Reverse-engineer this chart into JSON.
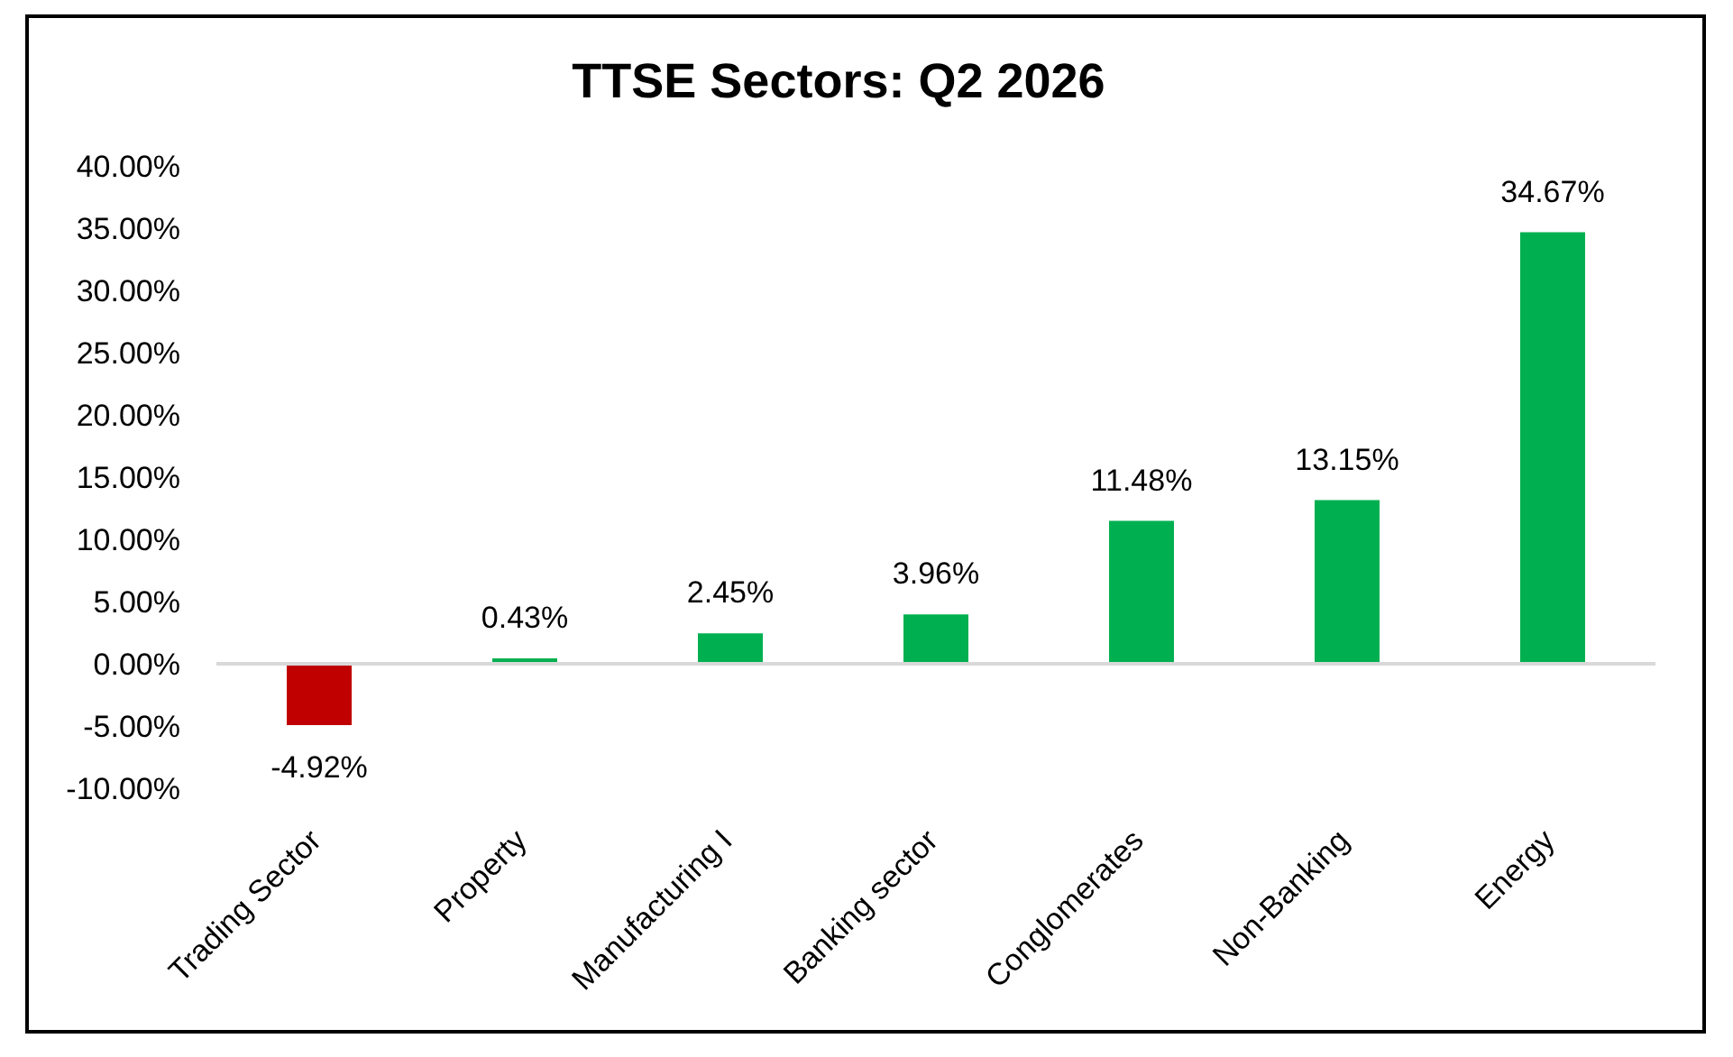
{
  "chart_data": {
    "type": "bar",
    "title": "TTSE Sectors: Q2 2026",
    "categories": [
      "Trading Sector",
      "Property",
      "Manufacturing I",
      "Banking sector",
      "Conglomerates",
      "Non-Banking",
      "Energy"
    ],
    "values": [
      -4.92,
      0.43,
      2.45,
      3.96,
      11.48,
      13.15,
      34.67
    ],
    "value_labels": [
      "-4.92%",
      "0.43%",
      "2.45%",
      "3.96%",
      "11.48%",
      "13.15%",
      "34.67%"
    ],
    "colors": [
      "#c00000",
      "#00b050",
      "#00b050",
      "#00b050",
      "#00b050",
      "#00b050",
      "#00b050"
    ],
    "ylim": [
      -10,
      40
    ],
    "yticks": [
      {
        "value": -10,
        "label": "-10.00%"
      },
      {
        "value": -5,
        "label": "-5.00%"
      },
      {
        "value": 0,
        "label": "0.00%"
      },
      {
        "value": 5,
        "label": "5.00%"
      },
      {
        "value": 10,
        "label": "10.00%"
      },
      {
        "value": 15,
        "label": "15.00%"
      },
      {
        "value": 20,
        "label": "20.00%"
      },
      {
        "value": 25,
        "label": "25.00%"
      },
      {
        "value": 30,
        "label": "30.00%"
      },
      {
        "value": 35,
        "label": "35.00%"
      },
      {
        "value": 40,
        "label": "40.00%"
      }
    ]
  }
}
